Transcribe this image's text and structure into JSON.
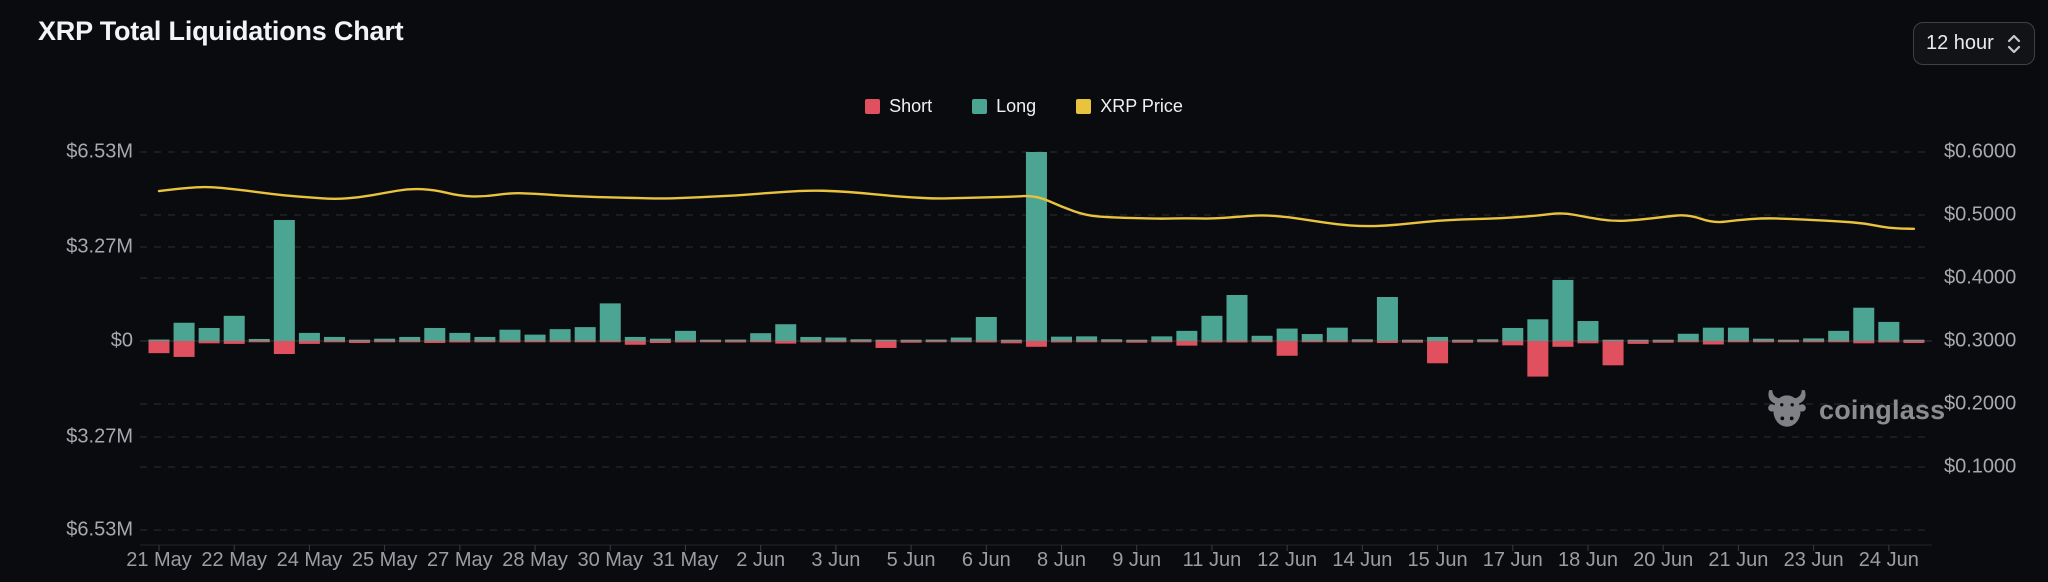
{
  "header": {
    "title": "XRP Total Liquidations Chart",
    "interval_selector": {
      "value": "12 hour",
      "icon": "updown-chevrons-icon"
    }
  },
  "legend": [
    {
      "label": "Short",
      "color": "#e1505f"
    },
    {
      "label": "Long",
      "color": "#4ca593"
    },
    {
      "label": "XRP Price",
      "color": "#e9c23e"
    }
  ],
  "watermark": {
    "label": "coinglass",
    "icon": "coinglass-bull-icon"
  },
  "chart_data": {
    "type": "bar",
    "subtype": "liquidations bars (up=Long, down=Short) + price line on right axis",
    "interval": "12 hour",
    "grid": "dashed horizontal",
    "legend_position": "top-center",
    "left_axis": {
      "unit": "USD millions",
      "tick_labels": [
        "$6.53M",
        "$3.27M",
        "$0",
        "$3.27M",
        "$6.53M"
      ],
      "max": 6.53,
      "min_mirrored": 6.53
    },
    "right_axis": {
      "unit": "USD",
      "tick_labels": [
        "$0.6000",
        "$0.5000",
        "$0.4000",
        "$0.3000",
        "$0.2000",
        "$0.1000"
      ],
      "max": 0.6,
      "min": 0.1
    },
    "x_tick_labels": [
      "21 May",
      "22 May",
      "24 May",
      "25 May",
      "27 May",
      "28 May",
      "30 May",
      "31 May",
      "2 Jun",
      "3 Jun",
      "5 Jun",
      "6 Jun",
      "8 Jun",
      "9 Jun",
      "11 Jun",
      "12 Jun",
      "14 Jun",
      "15 Jun",
      "17 Jun",
      "18 Jun",
      "20 Jun",
      "21 Jun",
      "23 Jun",
      "24 Jun"
    ],
    "bars_per_label": 3,
    "series": [
      {
        "name": "Long",
        "type": "bar",
        "direction": "up",
        "axis": "left",
        "color": "#4ca593",
        "values_musd": [
          0.05,
          0.63,
          0.45,
          0.87,
          0.07,
          4.18,
          0.28,
          0.14,
          0.02,
          0.08,
          0.14,
          0.45,
          0.28,
          0.14,
          0.39,
          0.22,
          0.41,
          0.48,
          1.3,
          0.14,
          0.08,
          0.35,
          0.03,
          0.05,
          0.27,
          0.58,
          0.14,
          0.12,
          0.06,
          0.02,
          0.03,
          0.05,
          0.12,
          0.83,
          0.03,
          6.53,
          0.15,
          0.16,
          0.06,
          0.03,
          0.16,
          0.35,
          0.87,
          1.59,
          0.18,
          0.43,
          0.24,
          0.46,
          0.06,
          1.52,
          0.02,
          0.14,
          0.02,
          0.06,
          0.45,
          0.75,
          2.11,
          0.69,
          0.03,
          0.02,
          0.01,
          0.25,
          0.46,
          0.46,
          0.08,
          0.02,
          0.09,
          0.35,
          1.15,
          0.66,
          0.02
        ]
      },
      {
        "name": "Short",
        "type": "bar",
        "direction": "down",
        "axis": "left",
        "color": "#e1505f",
        "values_musd": [
          0.42,
          0.55,
          0.08,
          0.1,
          0.03,
          0.45,
          0.1,
          0.03,
          0.07,
          0.02,
          0.02,
          0.07,
          0.05,
          0.02,
          0.05,
          0.02,
          0.03,
          0.03,
          0.03,
          0.13,
          0.07,
          0.05,
          0.02,
          0.05,
          0.03,
          0.09,
          0.05,
          0.03,
          0.02,
          0.24,
          0.06,
          0.02,
          0.03,
          0.05,
          0.08,
          0.2,
          0.05,
          0.02,
          0.02,
          0.06,
          0.03,
          0.16,
          0.05,
          0.05,
          0.04,
          0.51,
          0.04,
          0.04,
          0.02,
          0.07,
          0.06,
          0.77,
          0.06,
          0.02,
          0.15,
          1.23,
          0.2,
          0.08,
          0.84,
          0.1,
          0.06,
          0.02,
          0.12,
          0.02,
          0.02,
          0.02,
          0.01,
          0.03,
          0.08,
          0.05,
          0.07
        ]
      },
      {
        "name": "XRP Price",
        "type": "line",
        "axis": "right",
        "color": "#e9c23e",
        "values_usd": [
          0.538,
          0.543,
          0.545,
          0.541,
          0.536,
          0.531,
          0.528,
          0.525,
          0.528,
          0.535,
          0.542,
          0.54,
          0.53,
          0.529,
          0.535,
          0.534,
          0.531,
          0.529,
          0.528,
          0.527,
          0.526,
          0.527,
          0.529,
          0.531,
          0.534,
          0.537,
          0.539,
          0.538,
          0.535,
          0.531,
          0.528,
          0.526,
          0.527,
          0.528,
          0.529,
          0.531,
          0.513,
          0.499,
          0.496,
          0.495,
          0.494,
          0.495,
          0.494,
          0.497,
          0.5,
          0.497,
          0.491,
          0.485,
          0.482,
          0.483,
          0.487,
          0.491,
          0.493,
          0.494,
          0.496,
          0.499,
          0.504,
          0.496,
          0.49,
          0.492,
          0.497,
          0.501,
          0.487,
          0.492,
          0.495,
          0.494,
          0.492,
          0.49,
          0.487,
          0.479,
          0.478
        ]
      }
    ]
  }
}
